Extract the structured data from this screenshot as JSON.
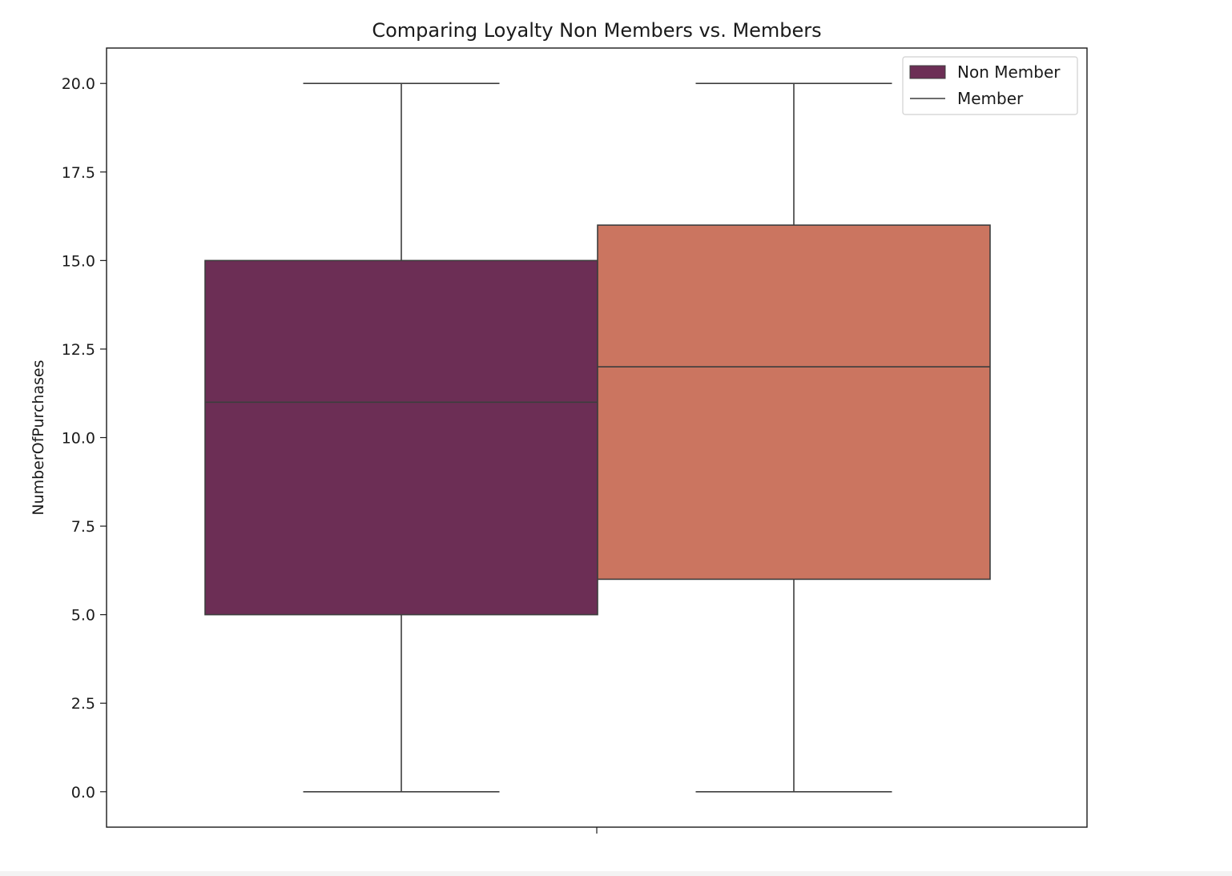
{
  "chart_data": {
    "type": "box",
    "title": "Comparing Loyalty Non Members vs. Members",
    "xlabel": "",
    "ylabel": "NumberOfPurchases",
    "ylim": [
      -1,
      21
    ],
    "yticks": [
      0.0,
      2.5,
      5.0,
      7.5,
      10.0,
      12.5,
      15.0,
      17.5,
      20.0
    ],
    "ytick_labels": [
      "0.0",
      "2.5",
      "5.0",
      "7.5",
      "10.0",
      "12.5",
      "15.0",
      "17.5",
      "20.0"
    ],
    "grid": false,
    "legend_position": "top-right",
    "series": [
      {
        "name": "Non Member",
        "min": 0,
        "q1": 5,
        "median": 11,
        "q3": 15,
        "max": 20,
        "color": "#6c2e55"
      },
      {
        "name": "Member",
        "min": 0,
        "q1": 6,
        "median": 12,
        "q3": 16,
        "max": 20,
        "color": "#cb7560"
      }
    ],
    "legend": [
      {
        "label": "Non Member",
        "marker": "patch",
        "color": "#6c2e55"
      },
      {
        "label": "Member",
        "marker": "line",
        "color": "#3d3d3d"
      }
    ]
  }
}
